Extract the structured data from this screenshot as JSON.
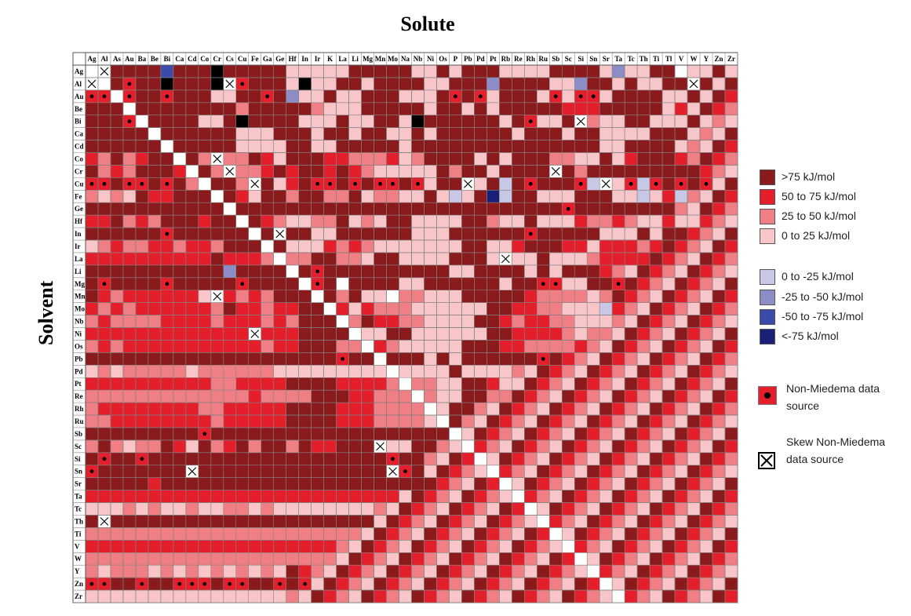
{
  "chart_data": {
    "type": "heatmap",
    "title": "Solute",
    "xlabel": "Solute",
    "ylabel": "Solvent",
    "solutes": [
      "Ag",
      "Al",
      "As",
      "Au",
      "Ba",
      "Be",
      "Bi",
      "Ca",
      "Cd",
      "Co",
      "Cr",
      "Cs",
      "Cu",
      "Fe",
      "Ga",
      "Ge",
      "Hf",
      "In",
      "Ir",
      "K",
      "La",
      "Li",
      "Mg",
      "Mn",
      "Mo",
      "Na",
      "Nb",
      "Ni",
      "Os",
      "P",
      "Pb",
      "Pd",
      "Pt",
      "Rb",
      "Re",
      "Rh",
      "Ru",
      "Sb",
      "Sc",
      "Si",
      "Sn",
      "Sr",
      "Ta",
      "Tc",
      "Th",
      "Ti",
      "Tl",
      "V",
      "W",
      "Y",
      "Zn",
      "Zr"
    ],
    "solvents": [
      "Ag",
      "Al",
      "Au",
      "Be",
      "Bi",
      "Ca",
      "Cd",
      "Co",
      "Cr",
      "Cu",
      "Fe",
      "Ge",
      "Hf",
      "In",
      "Ir",
      "La",
      "Li",
      "Mg",
      "Mn",
      "Mo",
      "Nb",
      "Ni",
      "Os",
      "Pb",
      "Pd",
      "Pt",
      "Re",
      "Rh",
      "Ru",
      "Sb",
      "Sc",
      "Si",
      "Sn",
      "Sr",
      "Ta",
      "Tc",
      "Th",
      "Ti",
      "V",
      "W",
      "Y",
      "Zn",
      "Zr"
    ],
    "legend": [
      {
        "label": ">75 kJ/mol",
        "color": "#8b1a1d"
      },
      {
        "label": "50 to 75 kJ/mol",
        "color": "#e41f2b"
      },
      {
        "label": "25 to 50 kJ/mol",
        "color": "#ef7f85"
      },
      {
        "label": "0 to 25 kJ/mol",
        "color": "#f8c5c8"
      },
      {
        "label": "0 to -25 kJ/mol",
        "color": "#c8c8e6"
      },
      {
        "label": "-25 to -50 kJ/mol",
        "color": "#8c8cc6"
      },
      {
        "label": "-50 to -75 kJ/mol",
        "color": "#3b4bab"
      },
      {
        "label": "<-75 kJ/mol",
        "color": "#1a1f78"
      }
    ],
    "special_colors": {
      "no_data": "#000000",
      "self": "#ffffff"
    },
    "marker_legend": [
      {
        "label": "Non-Miedema data source",
        "symbol": "dot"
      },
      {
        "label": "Skew Non-Miedema data source",
        "symbol": "x-box"
      }
    ],
    "category_code_key": "0=>75 kJ/mol,1=50 to 75,2=25 to 50,3=0 to 25,4=0 to -25,5=-25 to -50,6=-50 to -75,7=<-75,8=black (no data),9=white (self)",
    "cells": [
      "9S000060008000003333300000330300033330000353300B330",
      "S90D0080008SD00038330030000330005000033500303300S0",
      "DD9D00D0003300D05330330003330D0D30003D3DD30000330",
      "0009000000002000002333000003003030000011100000313",
      "000D9000033080000333033003800000030D330S2330033303",
      "0000090000003330003003003303000000300030033330003",
      "000000900000333300330000030000000000000003300003",
      "1202100002S22013000112221320000303000223303100012",
      "02120001002S2210100101233333020030000S0200000000",
      "DD0DD0D02S002S0310DD0D0DD0D300S3040D000D4S3D4D0D0D",
      "232301100000130020022032233034307400333000334314",
      "00000000000000000000000000000000000000D00000000",
      "1102120001000012332203230033330023303331221233133",
      "000000D00000000S0033000000333000000D00000333030",
      "3212211211200020333121233333330033100011311121",
      "111111111101112022002230033330003S33033321111",
      "000000000005000000D0000000000330000303000",
      "0D0000D00000D00000D09000033000000300DD3300D",
      "0121111113S12120000020339223330000012222320",
      "121211111120112110001312223333330011223334",
      "212222111121112120000201122333300121122333",
      "1111111111111S111000003300333333001111232",
      "212111111111112110002221233333000112222",
      "00000000000000000000D000000303000000D",
      "3232222232222223333333333333303333",
      "1111111111221111000011112222330013",
      "2222222222222122220001122222330022",
      "2111111112211111000011122223300",
      "221111111121111100001112222330",
      "000000000D0000000000000000000",
      "20232201302102002011000S33002",
      "0D00D0000000000000000000D00",
      "D0000000S000000000000000SD0",
      "000001000000000000000000000",
      "1111111111111111111111111",
      "33323233233223233333333",
      "0S000000000000000000000",
      "2222222222222222222222",
      "1111111111111111111",
      "2222222222222222222",
      "2322232323232323",
      "DD00D00DDD0DD00D0D",
      "3333333333333333"
    ]
  },
  "labels": {
    "legend_0": ">75 kJ/mol",
    "legend_1": "50 to 75 kJ/mol",
    "legend_2": "25 to 50 kJ/mol",
    "legend_3": "0 to 25 kJ/mol",
    "legend_4": "0 to -25 kJ/mol",
    "legend_5": "-25 to -50 kJ/mol",
    "legend_6": "-50 to -75 kJ/mol",
    "legend_7": "<-75 kJ/mol",
    "marker_dot": "Non-Miedema data source",
    "marker_x": "Skew Non-Miedema data source"
  }
}
